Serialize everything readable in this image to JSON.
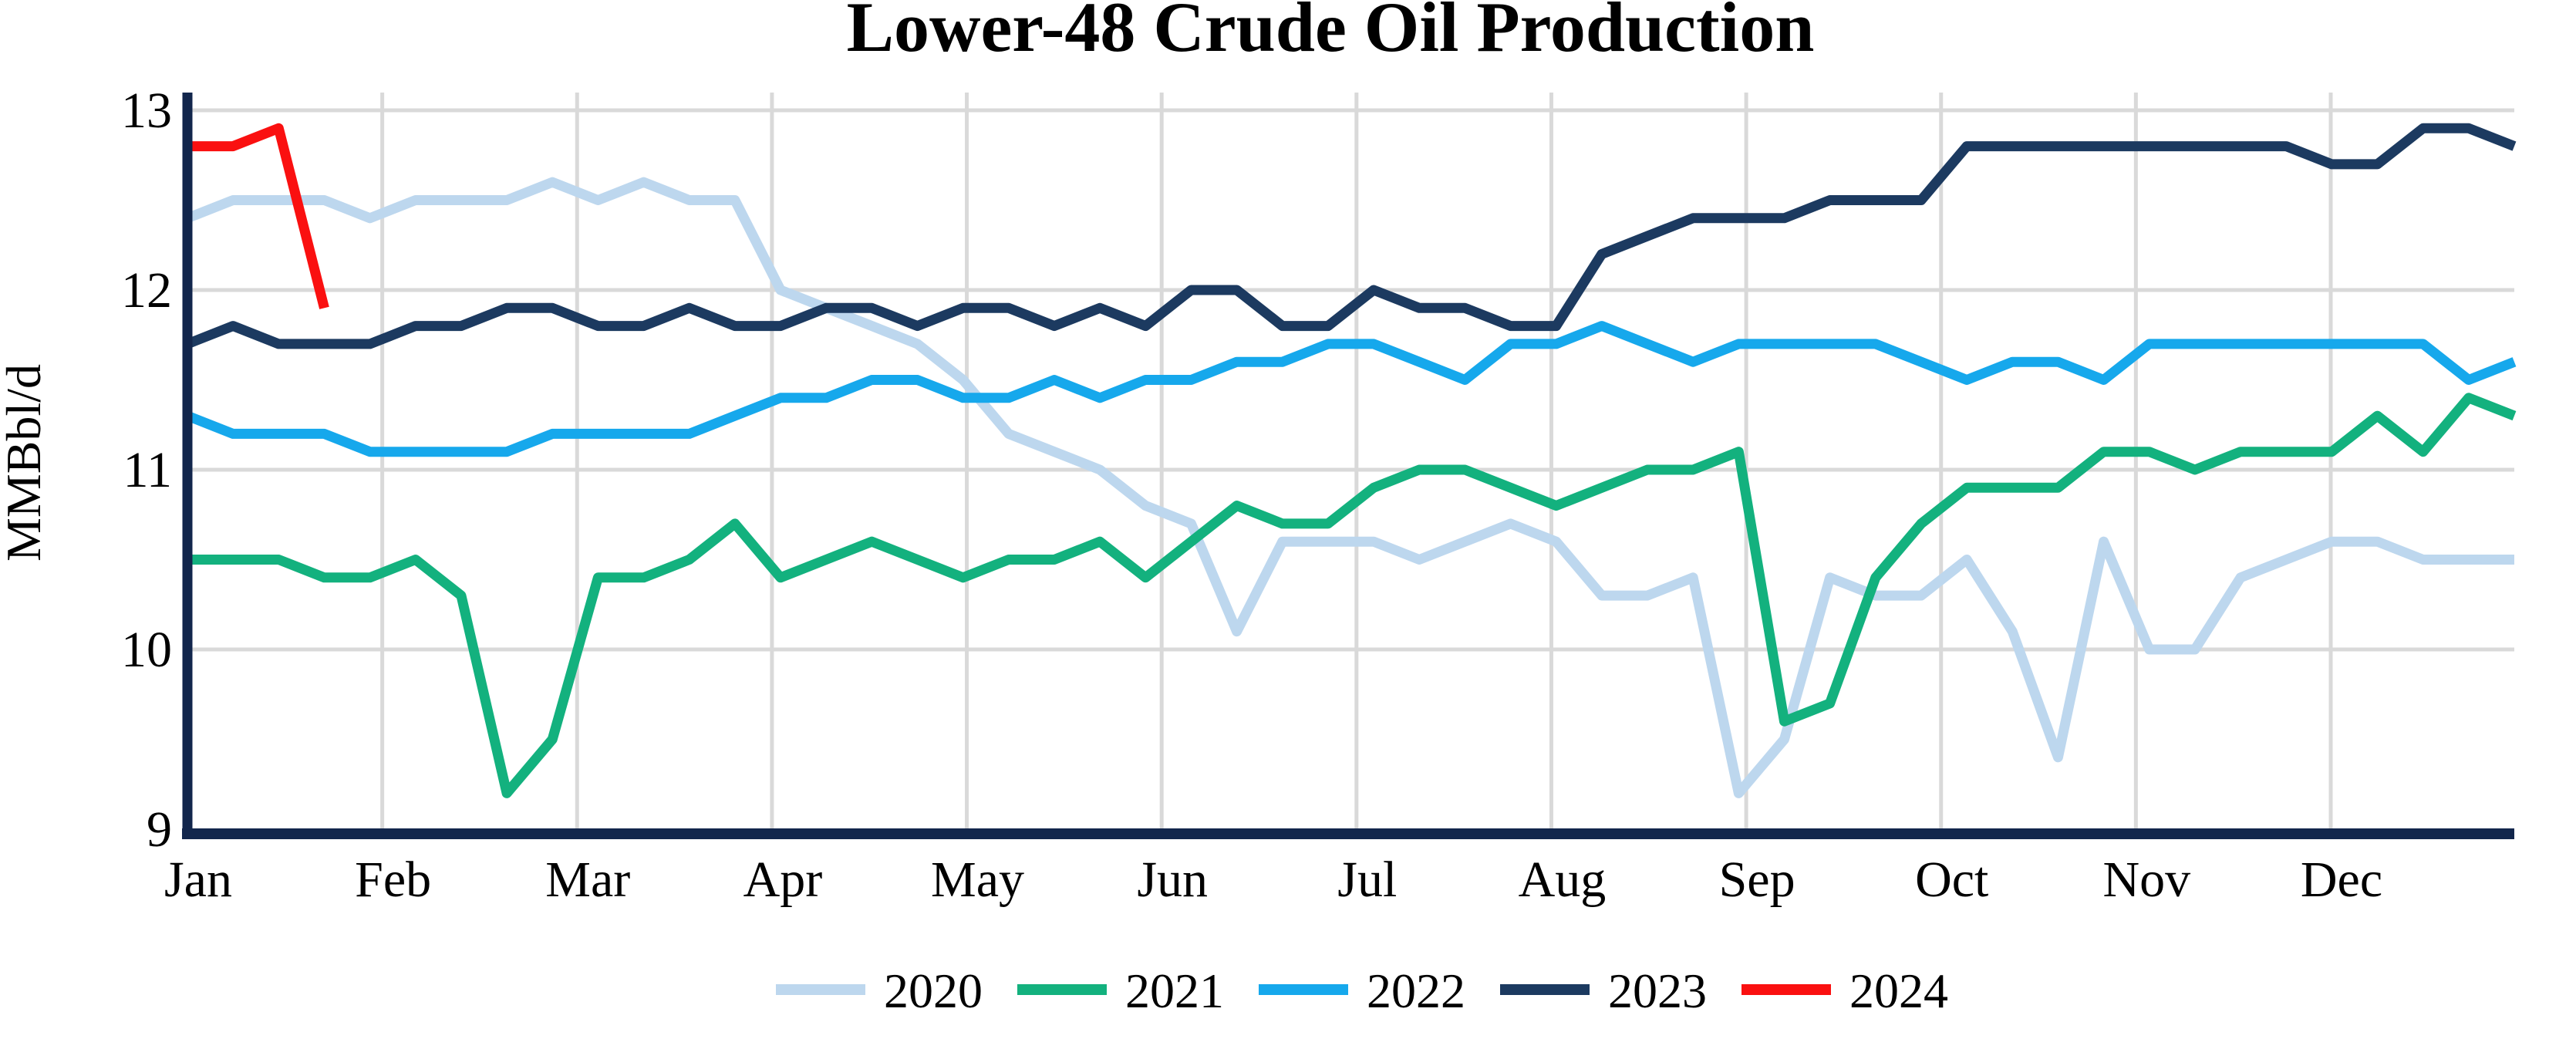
{
  "page": {
    "title": "Lower-48 Crude Oil Production"
  },
  "chart_data": {
    "type": "line",
    "title": "Lower-48 Crude Oil Production",
    "xlabel": "",
    "ylabel": "MMBbl/d",
    "x_frequency": "weekly",
    "x_tick_labels": [
      "Jan",
      "Feb",
      "Mar",
      "Apr",
      "May",
      "Jun",
      "Jul",
      "Aug",
      "Sep",
      "Oct",
      "Nov",
      "Dec"
    ],
    "yticks": [
      9,
      10,
      11,
      12,
      13
    ],
    "ylim": [
      9,
      13
    ],
    "grid": true,
    "legend_position": "bottom",
    "axis_color": "#12264C",
    "grid_color": "#D9D9D9",
    "series": [
      {
        "name": "2020",
        "color": "#BDD7EE",
        "values": [
          12.4,
          12.5,
          12.5,
          12.5,
          12.4,
          12.5,
          12.5,
          12.5,
          12.6,
          12.5,
          12.6,
          12.5,
          12.5,
          12.0,
          11.9,
          11.8,
          11.7,
          11.5,
          11.2,
          11.1,
          11.0,
          10.8,
          10.7,
          10.1,
          10.6,
          10.6,
          10.6,
          10.5,
          10.6,
          10.7,
          10.6,
          10.3,
          10.3,
          10.4,
          9.2,
          9.5,
          10.4,
          10.3,
          10.3,
          10.5,
          10.1,
          9.4,
          10.6,
          10.0,
          10.0,
          10.4,
          10.5,
          10.6,
          10.6,
          10.5,
          10.5,
          10.5
        ]
      },
      {
        "name": "2021",
        "color": "#13B17E",
        "values": [
          10.5,
          10.5,
          10.5,
          10.4,
          10.4,
          10.5,
          10.3,
          9.2,
          9.5,
          10.4,
          10.4,
          10.5,
          10.7,
          10.4,
          10.5,
          10.6,
          10.5,
          10.4,
          10.5,
          10.5,
          10.6,
          10.4,
          10.6,
          10.8,
          10.7,
          10.7,
          10.9,
          11.0,
          11.0,
          10.9,
          10.8,
          10.9,
          11.0,
          11.0,
          11.1,
          9.6,
          9.7,
          10.4,
          10.7,
          10.9,
          10.9,
          10.9,
          11.1,
          11.1,
          11.0,
          11.1,
          11.1,
          11.1,
          11.3,
          11.1,
          11.4,
          11.3
        ]
      },
      {
        "name": "2022",
        "color": "#16A8EC",
        "values": [
          11.3,
          11.2,
          11.2,
          11.2,
          11.1,
          11.1,
          11.1,
          11.1,
          11.2,
          11.2,
          11.2,
          11.2,
          11.3,
          11.4,
          11.4,
          11.5,
          11.5,
          11.4,
          11.4,
          11.5,
          11.4,
          11.5,
          11.5,
          11.6,
          11.6,
          11.7,
          11.7,
          11.6,
          11.5,
          11.7,
          11.7,
          11.8,
          11.7,
          11.6,
          11.7,
          11.7,
          11.7,
          11.7,
          11.6,
          11.5,
          11.6,
          11.6,
          11.5,
          11.7,
          11.7,
          11.7,
          11.7,
          11.7,
          11.7,
          11.7,
          11.5,
          11.6
        ]
      },
      {
        "name": "2023",
        "color": "#1C3A60",
        "values": [
          11.7,
          11.8,
          11.7,
          11.7,
          11.7,
          11.8,
          11.8,
          11.9,
          11.9,
          11.8,
          11.8,
          11.9,
          11.8,
          11.8,
          11.9,
          11.9,
          11.8,
          11.9,
          11.9,
          11.8,
          11.9,
          11.8,
          12.0,
          12.0,
          11.8,
          11.8,
          12.0,
          11.9,
          11.9,
          11.8,
          11.8,
          12.2,
          12.3,
          12.4,
          12.4,
          12.4,
          12.5,
          12.5,
          12.5,
          12.8,
          12.8,
          12.8,
          12.8,
          12.8,
          12.8,
          12.8,
          12.8,
          12.7,
          12.7,
          12.9,
          12.9,
          12.8
        ]
      },
      {
        "name": "2024",
        "color": "#FA1010",
        "values": [
          12.8,
          12.8,
          12.9,
          11.9
        ]
      }
    ]
  },
  "layout_hints": {
    "weeks_per_year": 52,
    "note_values_visible_only": true
  }
}
